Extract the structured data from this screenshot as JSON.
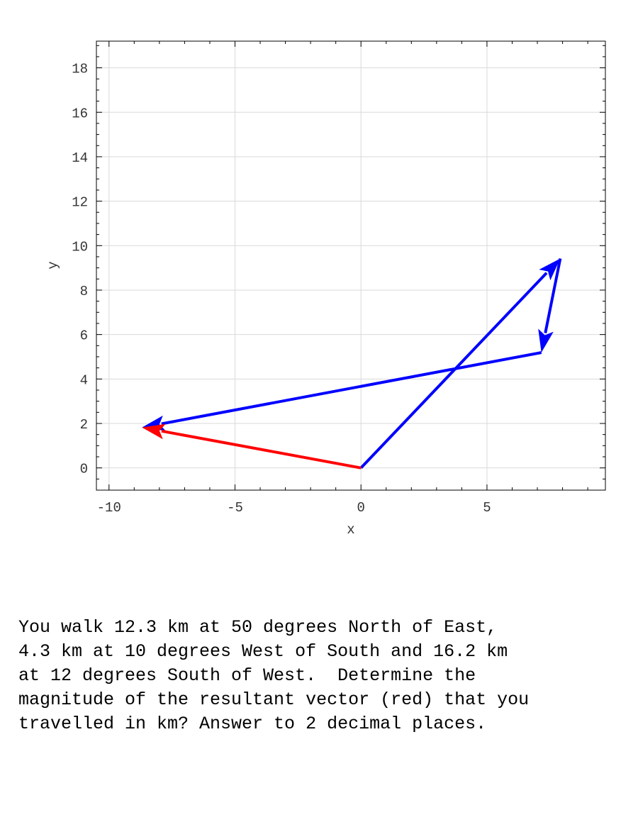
{
  "chart_data": {
    "type": "line",
    "xlabel": "x",
    "ylabel": "y",
    "xlim": [
      -10.5,
      9.7
    ],
    "ylim": [
      -1.0,
      19.2
    ],
    "xticks": [
      -10,
      -5,
      0,
      5
    ],
    "yticks": [
      0,
      2,
      4,
      6,
      8,
      10,
      12,
      14,
      16,
      18
    ],
    "x_minor_step": 1,
    "y_minor_step": 0.5,
    "grid": true,
    "vectors": [
      {
        "from": [
          0,
          0
        ],
        "to": [
          7.91,
          9.42
        ],
        "color": "#0000ff"
      },
      {
        "from": [
          7.91,
          9.42
        ],
        "to": [
          7.16,
          5.19
        ],
        "color": "#0000ff"
      },
      {
        "from": [
          7.16,
          5.19
        ],
        "to": [
          -8.69,
          1.82
        ],
        "color": "#0000ff"
      },
      {
        "from": [
          0,
          0
        ],
        "to": [
          -8.69,
          1.82
        ],
        "color": "#ff0000"
      }
    ]
  },
  "question": {
    "lines": [
      "You walk 12.3 km at 50 degrees North of East,",
      "4.3 km at 10 degrees West of South and 16.2 km",
      "at 12 degrees South of West.  Determine the",
      "magnitude of the resultant vector (red) that you",
      "travelled in km? Answer to 2 decimal places."
    ]
  }
}
